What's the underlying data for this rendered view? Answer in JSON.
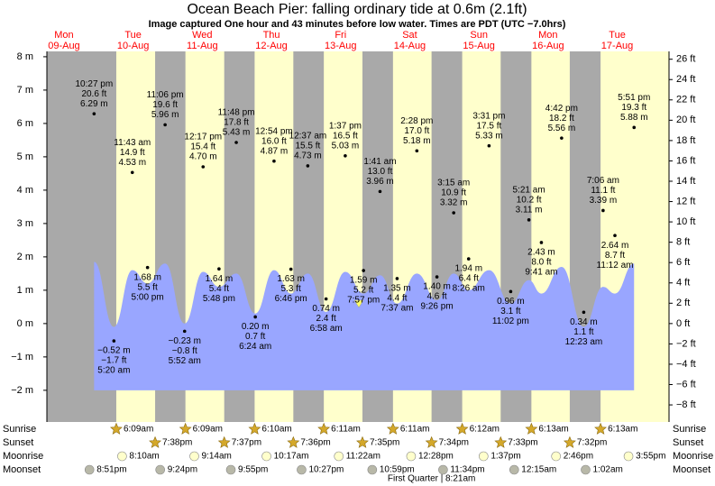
{
  "header": {
    "title": "Ocean Beach Pier: falling  ordinary tide at 0.6m (2.1ft)",
    "subtitle": "Image captured One hour and 43 minutes before low water. Times are PDT (UTC −7.0hrs)"
  },
  "chart_data": {
    "type": "tide",
    "ylim": [
      -2.95,
      8.16
    ],
    "yticks": [
      {
        "value": 8,
        "label": "8 m"
      },
      {
        "value": 7,
        "label": "7 m"
      },
      {
        "value": 6,
        "label": "6 m"
      },
      {
        "value": 5,
        "label": "5 m"
      },
      {
        "value": 4,
        "label": "4 m"
      },
      {
        "value": 3,
        "label": "3 m"
      },
      {
        "value": 2,
        "label": "2 m"
      },
      {
        "value": 1,
        "label": "1 m"
      },
      {
        "value": 0,
        "label": "0 m"
      },
      {
        "value": -1,
        "label": "−1 m"
      },
      {
        "value": -2,
        "label": "−2 m"
      }
    ],
    "y2lim": [
      -9.68,
      26.77
    ],
    "y2ticks": [
      {
        "value": 26,
        "label": "26 ft"
      },
      {
        "value": 24,
        "label": "24 ft"
      },
      {
        "value": 22,
        "label": "22 ft"
      },
      {
        "value": 20,
        "label": "20 ft"
      },
      {
        "value": 18,
        "label": "18 ft"
      },
      {
        "value": 16,
        "label": "16 ft"
      },
      {
        "value": 14,
        "label": "14 ft"
      },
      {
        "value": 12,
        "label": "12 ft"
      },
      {
        "value": 10,
        "label": "10 ft"
      },
      {
        "value": 8,
        "label": "8 ft"
      },
      {
        "value": 6,
        "label": "6 ft"
      },
      {
        "value": 4,
        "label": "4 ft"
      },
      {
        "value": 2,
        "label": "2 ft"
      },
      {
        "value": 0,
        "label": "0 ft"
      },
      {
        "value": -2,
        "label": "−2 ft"
      },
      {
        "value": -4,
        "label": "−4 ft"
      },
      {
        "value": -6,
        "label": "−6 ft"
      },
      {
        "value": -8,
        "label": "−8 ft"
      }
    ],
    "row_labels": {
      "sunrise": "Sunrise",
      "sunset": "Sunset",
      "moonrise": "Moonrise",
      "moonset": "Moonset"
    },
    "moon_phase": {
      "name": "First Quarter",
      "time": "8:21am"
    },
    "days": [
      {
        "weekday": "Mon",
        "date": "09-Aug",
        "sunrise": null,
        "sunset": null,
        "moonrise": null,
        "moonset": "8:51pm",
        "extremes": [
          {
            "time": "10:27 pm",
            "height": 6.29,
            "height_label": "6.29 m",
            "feet": "20.6 ft",
            "curve": 1.85
          }
        ]
      },
      {
        "weekday": "Tue",
        "date": "10-Aug",
        "sunrise": "6:09am",
        "sunset": "7:38pm",
        "moonrise": "8:10am",
        "moonset": "9:24pm",
        "extremes": [
          {
            "time": "5:20 am",
            "height": -0.52,
            "height_label": "−0.52 m",
            "feet": "−1.7 ft",
            "curve": -0.1
          },
          {
            "time": "11:43 am",
            "height": 4.53,
            "height_label": "4.53 m",
            "feet": "14.9 ft",
            "curve": 1.6
          },
          {
            "time": "5:00 pm",
            "height": 1.68,
            "height_label": "1.68 m",
            "feet": "5.5 ft",
            "curve": 1.2
          },
          {
            "time": "11:06 pm",
            "height": 5.96,
            "height_label": "5.96 m",
            "feet": "19.6 ft",
            "curve": 1.8
          }
        ]
      },
      {
        "weekday": "Wed",
        "date": "11-Aug",
        "sunrise": "6:09am",
        "sunset": "7:37pm",
        "moonrise": "9:14am",
        "moonset": "9:55pm",
        "extremes": [
          {
            "time": "5:52 am",
            "height": -0.23,
            "height_label": "−0.23 m",
            "feet": "−0.8 ft",
            "curve": 0.0
          },
          {
            "time": "12:17 pm",
            "height": 4.7,
            "height_label": "4.70 m",
            "feet": "15.4 ft",
            "curve": 1.55
          },
          {
            "time": "5:48 pm",
            "height": 1.64,
            "height_label": "1.64 m",
            "feet": "5.4 ft",
            "curve": 1.1
          },
          {
            "time": "11:48 pm",
            "height": 5.43,
            "height_label": "5.43 m",
            "feet": "17.8 ft",
            "curve": 1.5
          }
        ]
      },
      {
        "weekday": "Thu",
        "date": "12-Aug",
        "sunrise": "6:10am",
        "sunset": "7:36pm",
        "moonrise": "10:17am",
        "moonset": "10:27pm",
        "extremes": [
          {
            "time": "6:24 am",
            "height": 0.2,
            "height_label": "0.20 m",
            "feet": "0.7 ft",
            "curve": 0.3
          },
          {
            "time": "12:54 pm",
            "height": 4.87,
            "height_label": "4.87 m",
            "feet": "16.0 ft",
            "curve": 1.6
          },
          {
            "time": "6:46 pm",
            "height": 1.63,
            "height_label": "1.63 m",
            "feet": "5.3 ft",
            "curve": 0.9
          }
        ]
      },
      {
        "weekday": "Fri",
        "date": "13-Aug",
        "sunrise": "6:11am",
        "sunset": "7:35pm",
        "moonrise": "11:22am",
        "moonset": "10:59pm",
        "extremes": [
          {
            "time": "12:37 am",
            "height": 4.73,
            "height_label": "4.73 m",
            "feet": "15.5 ft",
            "curve": 1.5
          },
          {
            "time": "6:58 am",
            "height": 0.74,
            "height_label": "0.74 m",
            "feet": "2.4 ft",
            "curve": 0.35
          },
          {
            "time": "1:37 pm",
            "height": 5.03,
            "height_label": "5.03 m",
            "feet": "16.5 ft",
            "curve": 1.55
          },
          {
            "time": "7:57 pm",
            "height": 1.59,
            "height_label": "1.59 m",
            "feet": "5.2 ft",
            "curve": 0.9
          }
        ]
      },
      {
        "weekday": "Sat",
        "date": "14-Aug",
        "sunrise": "6:11am",
        "sunset": "7:34pm",
        "moonrise": "12:28pm",
        "moonset": "11:34pm",
        "extremes": [
          {
            "time": "1:41 am",
            "height": 3.96,
            "height_label": "3.96 m",
            "feet": "13.0 ft",
            "curve": 1.45
          },
          {
            "time": "7:37 am",
            "height": 1.35,
            "height_label": "1.35 m",
            "feet": "4.4 ft",
            "curve": 0.6
          },
          {
            "time": "2:28 pm",
            "height": 5.18,
            "height_label": "5.18 m",
            "feet": "17.0 ft",
            "curve": 1.5
          },
          {
            "time": "9:26 pm",
            "height": 1.4,
            "height_label": "1.40 m",
            "feet": "4.6 ft",
            "curve": 0.7
          }
        ]
      },
      {
        "weekday": "Sun",
        "date": "15-Aug",
        "sunrise": "6:12am",
        "sunset": "7:33pm",
        "moonrise": "1:37pm",
        "moonset": null,
        "extremes": [
          {
            "time": "3:15 am",
            "height": 3.32,
            "height_label": "3.32 m",
            "feet": "10.9 ft",
            "curve": 1.5
          },
          {
            "time": "8:26 am",
            "height": 1.94,
            "height_label": "1.94 m",
            "feet": "6.4 ft",
            "curve": 1.0
          },
          {
            "time": "3:31 pm",
            "height": 5.33,
            "height_label": "5.33 m",
            "feet": "17.5 ft",
            "curve": 1.6
          },
          {
            "time": "11:02 pm",
            "height": 0.96,
            "height_label": "0.96 m",
            "feet": "3.1 ft",
            "curve": 0.6
          }
        ]
      },
      {
        "weekday": "Mon",
        "date": "16-Aug",
        "sunrise": "6:13am",
        "sunset": "7:32pm",
        "moonrise": "2:46pm",
        "moonset": "12:15am",
        "extremes": [
          {
            "time": "5:21 am",
            "height": 3.11,
            "height_label": "3.11 m",
            "feet": "10.2 ft",
            "curve": 1.3
          },
          {
            "time": "9:41 am",
            "height": 2.43,
            "height_label": "2.43 m",
            "feet": "8.0 ft",
            "curve": 0.9
          },
          {
            "time": "4:42 pm",
            "height": 5.56,
            "height_label": "5.56 m",
            "feet": "18.2 ft",
            "curve": 1.7
          }
        ]
      },
      {
        "weekday": "Tue",
        "date": "17-Aug",
        "sunrise": "6:13am",
        "sunset": null,
        "moonrise": "3:55pm",
        "moonset": "1:02am",
        "extremes": [
          {
            "time": "12:23 am",
            "height": 0.34,
            "height_label": "0.34 m",
            "feet": "1.1 ft",
            "curve": -0.1
          },
          {
            "time": "7:06 am",
            "height": 3.39,
            "height_label": "3.39 m",
            "feet": "11.1 ft",
            "curve": 1.1
          },
          {
            "time": "11:12 am",
            "height": 2.64,
            "height_label": "2.64 m",
            "feet": "8.7 ft",
            "curve": 0.9
          },
          {
            "time": "5:51 pm",
            "height": 5.88,
            "height_label": "5.88 m",
            "feet": "19.3 ft",
            "curve": 1.8
          }
        ]
      }
    ]
  }
}
